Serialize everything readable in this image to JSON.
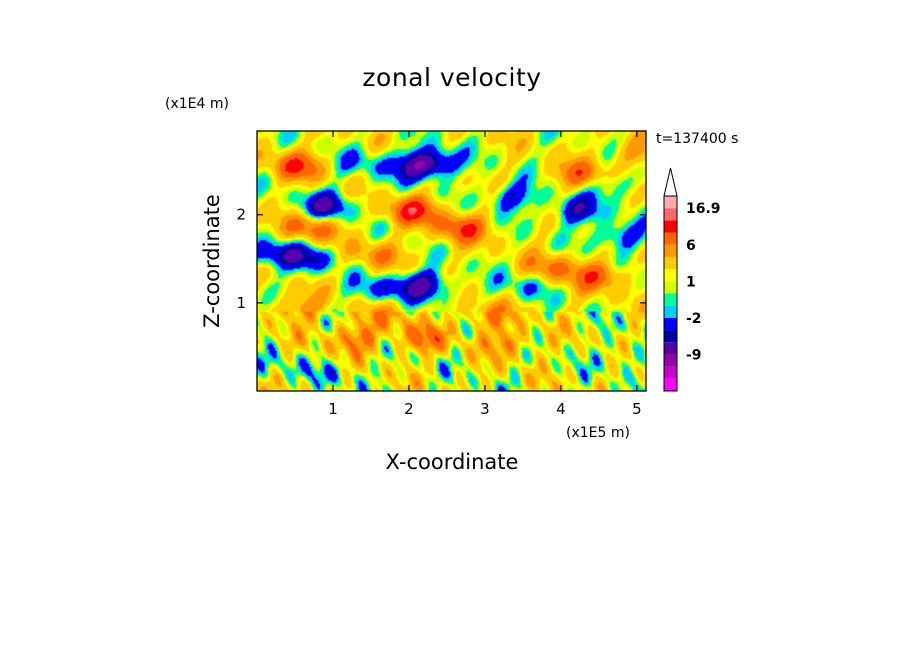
{
  "chart_data": {
    "type": "heatmap",
    "title": "zonal velocity",
    "time_label": "t=137400 s",
    "xlabel": "X-coordinate",
    "ylabel": "Z-coordinate",
    "x_scale_label": "(x1E5 m)",
    "y_scale_label": "(x1E4 m)",
    "xlim": [
      0,
      5.12
    ],
    "ylim": [
      0,
      2.95
    ],
    "x_ticks": [
      {
        "value": 1,
        "label": "1"
      },
      {
        "value": 2,
        "label": "2"
      },
      {
        "value": 3,
        "label": "3"
      },
      {
        "value": 4,
        "label": "4"
      },
      {
        "value": 5,
        "label": "5"
      }
    ],
    "y_ticks": [
      {
        "value": 1,
        "label": "1"
      },
      {
        "value": 2,
        "label": "2"
      }
    ],
    "colorbar": {
      "levels": [
        -15,
        -12,
        -9,
        -6,
        -4,
        -2,
        -1,
        0,
        1,
        2,
        4,
        6,
        9,
        12,
        16.9
      ],
      "colors": [
        "#ff00ff",
        "#cc00cc",
        "#9900aa",
        "#5500aa",
        "#0000aa",
        "#0000ff",
        "#00ccff",
        "#00ff99",
        "#ccff00",
        "#ffff00",
        "#ffcc00",
        "#ff9900",
        "#ff6600",
        "#ff0000",
        "#ff6666",
        "#ffaaaa"
      ],
      "labels": [
        {
          "value": 16.9,
          "label": "16.9"
        },
        {
          "value": 6,
          "label": "6"
        },
        {
          "value": 1,
          "label": "1"
        },
        {
          "value": -2,
          "label": "-2"
        },
        {
          "value": -9,
          "label": "-9"
        }
      ]
    },
    "features": [
      {
        "x": 0.9,
        "z": 2.1,
        "v": -7
      },
      {
        "x": 2.1,
        "z": 2.55,
        "v": -7
      },
      {
        "x": 2.35,
        "z": 2.6,
        "v": -6
      },
      {
        "x": 3.35,
        "z": 2.2,
        "v": -5
      },
      {
        "x": 4.2,
        "z": 2.05,
        "v": -6
      },
      {
        "x": 4.75,
        "z": 1.75,
        "v": -5
      },
      {
        "x": 0.2,
        "z": 1.55,
        "v": -6
      },
      {
        "x": 0.7,
        "z": 1.5,
        "v": -5
      },
      {
        "x": 2.2,
        "z": 1.2,
        "v": -8
      },
      {
        "x": 1.6,
        "z": 1.15,
        "v": -4
      },
      {
        "x": 4.7,
        "z": 2.35,
        "v": -4
      },
      {
        "x": 3.5,
        "z": 1.2,
        "v": -3
      },
      {
        "x": 1.4,
        "z": 2.6,
        "v": -3
      },
      {
        "x": 0.5,
        "z": 2.55,
        "v": 7
      },
      {
        "x": 2.05,
        "z": 2.05,
        "v": 8
      },
      {
        "x": 2.7,
        "z": 1.85,
        "v": 7
      },
      {
        "x": 4.3,
        "z": 2.45,
        "v": 6
      },
      {
        "x": 0.7,
        "z": 1.85,
        "v": 6
      },
      {
        "x": 2.2,
        "z": 0.6,
        "v": 5
      },
      {
        "x": 1.3,
        "z": 0.6,
        "v": 5
      },
      {
        "x": 3.3,
        "z": 0.55,
        "v": 4
      },
      {
        "x": 3.9,
        "z": 1.4,
        "v": 5
      },
      {
        "x": 4.5,
        "z": 1.3,
        "v": 6
      },
      {
        "x": 3.05,
        "z": 0.85,
        "v": 4
      },
      {
        "x": 0.55,
        "z": 0.95,
        "v": 4
      },
      {
        "x": 1.7,
        "z": 0.85,
        "v": 3
      },
      {
        "x": 0.25,
        "z": 0.25,
        "v": -2
      },
      {
        "x": 1.0,
        "z": 0.2,
        "v": -2
      },
      {
        "x": 4.8,
        "z": 0.4,
        "v": -2
      },
      {
        "x": 1.55,
        "z": 1.55,
        "v": 4
      },
      {
        "x": 4.95,
        "z": 2.7,
        "v": 3
      }
    ]
  }
}
